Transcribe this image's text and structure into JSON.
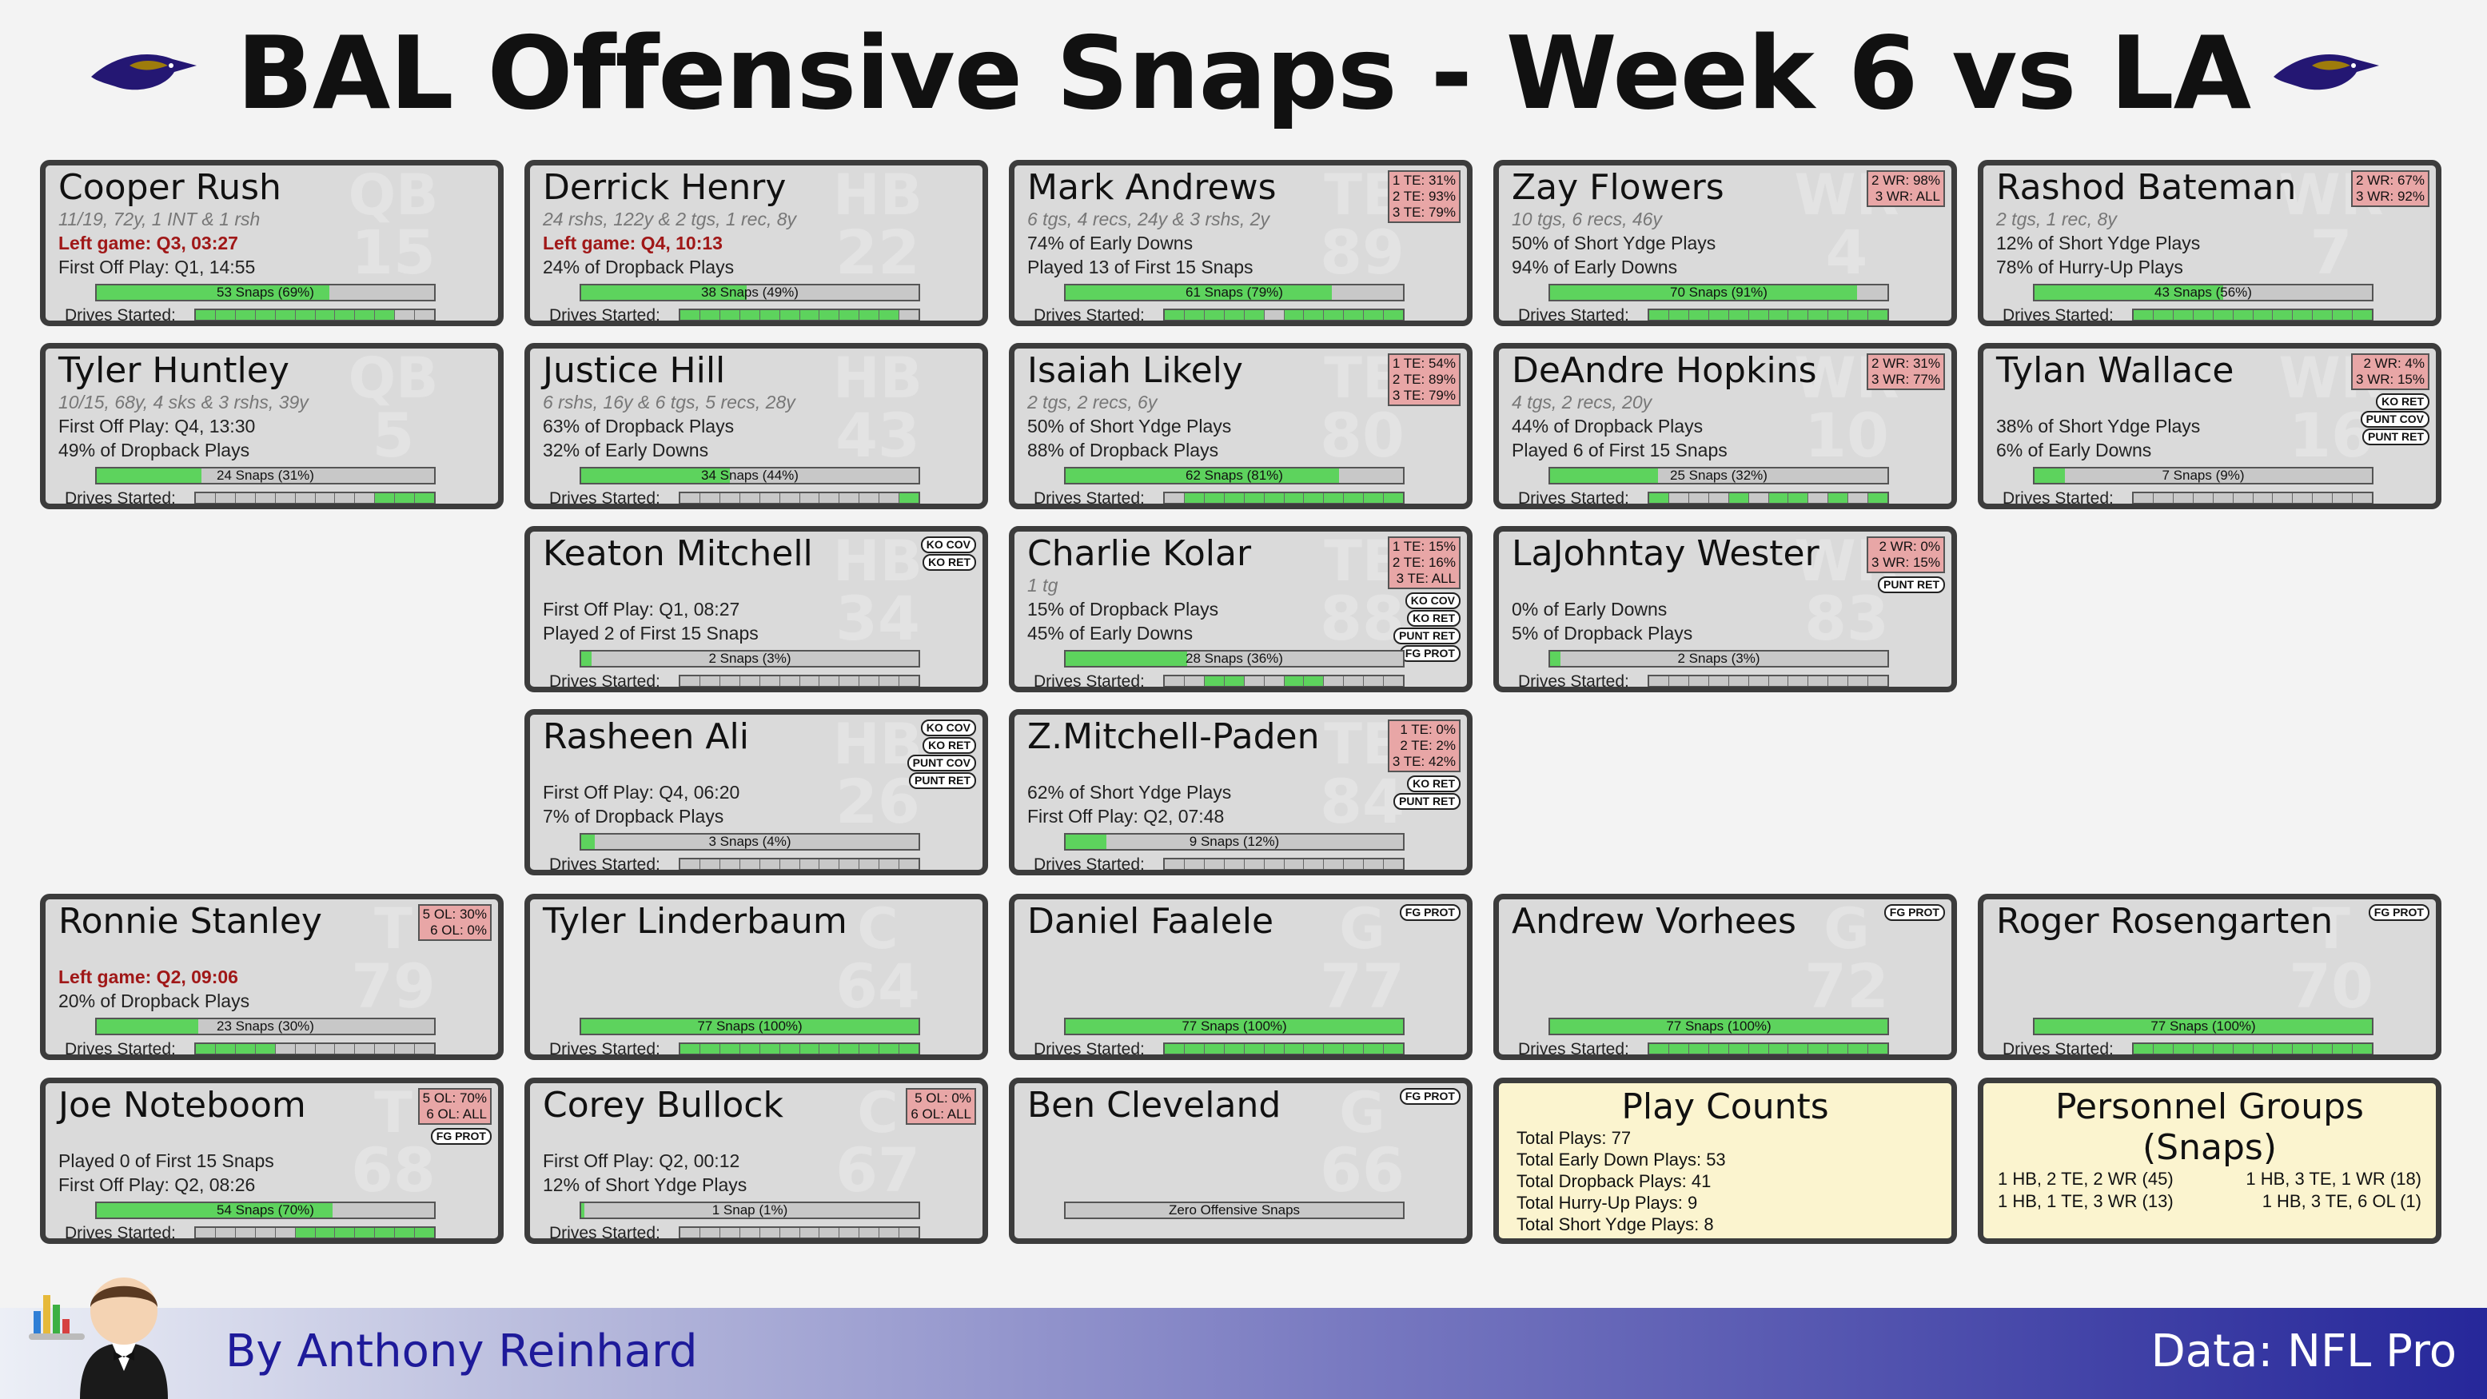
{
  "title": "BAL Offensive Snaps - Week 6 vs LA",
  "footer": {
    "byline": "By Anthony Reinhard",
    "source": "Data: NFL Pro"
  },
  "drives_label": "Drives Started:",
  "cards": [
    {
      "name": "Cooper Rush",
      "pos": "QB",
      "num": "15",
      "lines": [
        {
          "text": "11/19, 72y, 1 INT & 1 rsh",
          "kind": "stat"
        },
        {
          "text": "Left game: Q3, 03:27",
          "kind": "left"
        },
        {
          "text": "First Off Play: Q1, 14:55",
          "kind": "plain"
        }
      ],
      "snaps_label": "53 Snaps (69%)",
      "snap_share": 0.69,
      "drives": [
        1,
        1,
        1,
        1,
        1,
        1,
        1,
        1,
        1,
        1,
        0,
        0
      ]
    },
    {
      "name": "Derrick Henry",
      "pos": "HB",
      "num": "22",
      "lines": [
        {
          "text": "24 rshs, 122y & 2 tgs, 1 rec, 8y",
          "kind": "stat"
        },
        {
          "text": "Left game: Q4, 10:13",
          "kind": "left"
        },
        {
          "text": "24% of Dropback Plays",
          "kind": "plain"
        }
      ],
      "snaps_label": "38 Snaps (49%)",
      "snap_share": 0.49,
      "drives": [
        1,
        1,
        1,
        1,
        1,
        1,
        1,
        1,
        1,
        1,
        1,
        0
      ]
    },
    {
      "name": "Mark Andrews",
      "pos": "TE",
      "num": "89",
      "pct": [
        "1 TE: 31%",
        "2 TE: 93%",
        "3 TE: 79%"
      ],
      "lines": [
        {
          "text": "6 tgs, 4 recs, 24y & 3 rshs, 2y",
          "kind": "stat"
        },
        {
          "text": "74% of Early Downs",
          "kind": "plain"
        },
        {
          "text": "Played 13 of First 15 Snaps",
          "kind": "plain"
        }
      ],
      "snaps_label": "61 Snaps (79%)",
      "snap_share": 0.79,
      "drives": [
        1,
        1,
        1,
        1,
        1,
        0,
        1,
        1,
        1,
        1,
        1,
        1
      ]
    },
    {
      "name": "Zay Flowers",
      "pos": "WR",
      "num": "4",
      "pct": [
        "2 WR: 98%",
        "3 WR: ALL"
      ],
      "lines": [
        {
          "text": "10 tgs, 6 recs, 46y",
          "kind": "stat"
        },
        {
          "text": "50% of Short Ydge Plays",
          "kind": "plain"
        },
        {
          "text": "94% of Early Downs",
          "kind": "plain"
        }
      ],
      "snaps_label": "70 Snaps (91%)",
      "snap_share": 0.91,
      "drives": [
        1,
        1,
        1,
        1,
        1,
        1,
        1,
        1,
        1,
        1,
        1,
        1
      ]
    },
    {
      "name": "Rashod Bateman",
      "pos": "WR",
      "num": "7",
      "pct": [
        "2 WR: 67%",
        "3 WR: 92%"
      ],
      "lines": [
        {
          "text": "2 tgs, 1 rec, 8y",
          "kind": "stat"
        },
        {
          "text": "12% of Short Ydge Plays",
          "kind": "plain"
        },
        {
          "text": "78% of Hurry-Up Plays",
          "kind": "plain"
        }
      ],
      "snaps_label": "43 Snaps (56%)",
      "snap_share": 0.56,
      "drives": [
        1,
        1,
        1,
        1,
        1,
        1,
        1,
        1,
        1,
        1,
        1,
        1
      ]
    },
    {
      "name": "Tyler Huntley",
      "pos": "QB",
      "num": "5",
      "lines": [
        {
          "text": "10/15, 68y, 4 sks & 3 rshs, 39y",
          "kind": "stat"
        },
        {
          "text": "First Off Play: Q4, 13:30",
          "kind": "plain"
        },
        {
          "text": "49% of Dropback Plays",
          "kind": "plain"
        }
      ],
      "snaps_label": "24 Snaps (31%)",
      "snap_share": 0.31,
      "drives": [
        0,
        0,
        0,
        0,
        0,
        0,
        0,
        0,
        0,
        1,
        1,
        1
      ]
    },
    {
      "name": "Justice Hill",
      "pos": "HB",
      "num": "43",
      "lines": [
        {
          "text": "6 rshs, 16y & 6 tgs, 5 recs, 28y",
          "kind": "stat"
        },
        {
          "text": "63% of Dropback Plays",
          "kind": "plain"
        },
        {
          "text": "32% of Early Downs",
          "kind": "plain"
        }
      ],
      "snaps_label": "34 Snaps (44%)",
      "snap_share": 0.44,
      "drives": [
        0,
        0,
        0,
        0,
        0,
        0,
        0,
        0,
        0,
        0,
        0,
        1
      ]
    },
    {
      "name": "Isaiah Likely",
      "pos": "TE",
      "num": "80",
      "pct": [
        "1 TE: 54%",
        "2 TE: 89%",
        "3 TE: 79%"
      ],
      "lines": [
        {
          "text": "2 tgs, 2 recs, 6y",
          "kind": "stat"
        },
        {
          "text": "50% of Short Ydge Plays",
          "kind": "plain"
        },
        {
          "text": "88% of Dropback Plays",
          "kind": "plain"
        }
      ],
      "snaps_label": "62 Snaps (81%)",
      "snap_share": 0.81,
      "drives": [
        0,
        1,
        1,
        1,
        1,
        1,
        1,
        1,
        1,
        1,
        1,
        1
      ]
    },
    {
      "name": "DeAndre Hopkins",
      "pos": "WR",
      "num": "10",
      "pct": [
        "2 WR: 31%",
        "3 WR: 77%"
      ],
      "lines": [
        {
          "text": "4 tgs, 2 recs, 20y",
          "kind": "stat"
        },
        {
          "text": "44% of Dropback Plays",
          "kind": "plain"
        },
        {
          "text": "Played 6 of First 15 Snaps",
          "kind": "plain"
        }
      ],
      "snaps_label": "25 Snaps (32%)",
      "snap_share": 0.32,
      "drives": [
        1,
        0,
        0,
        0,
        1,
        0,
        1,
        1,
        0,
        1,
        0,
        1
      ]
    },
    {
      "name": "Tylan Wallace",
      "pos": "WR",
      "num": "16",
      "pct": [
        "2 WR: 4%",
        "3 WR: 15%"
      ],
      "badges": [
        "KO RET",
        "PUNT COV",
        "PUNT RET"
      ],
      "lines": [
        {
          "text": "",
          "kind": "stat"
        },
        {
          "text": "38% of Short Ydge Plays",
          "kind": "plain"
        },
        {
          "text": "6% of Early Downs",
          "kind": "plain"
        }
      ],
      "snaps_label": "7 Snaps (9%)",
      "snap_share": 0.09,
      "drives": [
        0,
        0,
        0,
        0,
        0,
        0,
        0,
        0,
        0,
        0,
        0,
        0
      ]
    },
    {
      "name": "Keaton Mitchell",
      "pos": "HB",
      "num": "34",
      "badges": [
        "KO COV",
        "KO RET"
      ],
      "lines": [
        {
          "text": "",
          "kind": "stat"
        },
        {
          "text": "First Off Play: Q1, 08:27",
          "kind": "plain"
        },
        {
          "text": "Played 2 of First 15 Snaps",
          "kind": "plain"
        }
      ],
      "snaps_label": "2 Snaps (3%)",
      "snap_share": 0.03,
      "drives": [
        0,
        0,
        0,
        0,
        0,
        0,
        0,
        0,
        0,
        0,
        0,
        0
      ]
    },
    {
      "name": "Charlie Kolar",
      "pos": "TE",
      "num": "88",
      "pct": [
        "1 TE: 15%",
        "2 TE: 16%",
        "3 TE: ALL"
      ],
      "badges": [
        "KO COV",
        "KO RET",
        "PUNT RET",
        "FG PROT"
      ],
      "lines": [
        {
          "text": "1 tg",
          "kind": "stat"
        },
        {
          "text": "15% of Dropback Plays",
          "kind": "plain"
        },
        {
          "text": "45% of Early Downs",
          "kind": "plain"
        }
      ],
      "snaps_label": "28 Snaps (36%)",
      "snap_share": 0.36,
      "drives": [
        0,
        0,
        1,
        1,
        0,
        0,
        1,
        1,
        0,
        0,
        0,
        0
      ]
    },
    {
      "name": "LaJohntay Wester",
      "pos": "WR",
      "num": "83",
      "pct": [
        "2 WR: 0%",
        "3 WR: 15%"
      ],
      "badges": [
        "PUNT RET"
      ],
      "lines": [
        {
          "text": "",
          "kind": "stat"
        },
        {
          "text": "0% of Early Downs",
          "kind": "plain"
        },
        {
          "text": "5% of Dropback Plays",
          "kind": "plain"
        }
      ],
      "snaps_label": "2 Snaps (3%)",
      "snap_share": 0.03,
      "drives": [
        0,
        0,
        0,
        0,
        0,
        0,
        0,
        0,
        0,
        0,
        0,
        0
      ]
    },
    {
      "name": "Rasheen Ali",
      "pos": "HB",
      "num": "26",
      "badges": [
        "KO COV",
        "KO RET",
        "PUNT COV",
        "PUNT RET"
      ],
      "lines": [
        {
          "text": "",
          "kind": "stat"
        },
        {
          "text": "First Off Play: Q4, 06:20",
          "kind": "plain"
        },
        {
          "text": "7% of Dropback Plays",
          "kind": "plain"
        }
      ],
      "snaps_label": "3 Snaps (4%)",
      "snap_share": 0.04,
      "drives": [
        0,
        0,
        0,
        0,
        0,
        0,
        0,
        0,
        0,
        0,
        0,
        0
      ]
    },
    {
      "name": "Z.Mitchell-Paden",
      "pos": "TE",
      "num": "84",
      "pct": [
        "1 TE: 0%",
        "2 TE: 2%",
        "3 TE: 42%"
      ],
      "badges": [
        "KO RET",
        "PUNT RET"
      ],
      "lines": [
        {
          "text": "",
          "kind": "stat"
        },
        {
          "text": "62% of Short Ydge Plays",
          "kind": "plain"
        },
        {
          "text": "First Off Play: Q2, 07:48",
          "kind": "plain"
        }
      ],
      "snaps_label": "9 Snaps (12%)",
      "snap_share": 0.12,
      "drives": [
        0,
        0,
        0,
        0,
        0,
        0,
        0,
        0,
        0,
        0,
        0,
        0
      ]
    },
    {
      "name": "Ronnie Stanley",
      "pos": "T",
      "num": "79",
      "pct": [
        "5 OL: 30%",
        "6 OL: 0%"
      ],
      "lines": [
        {
          "text": "",
          "kind": "stat"
        },
        {
          "text": "Left game: Q2, 09:06",
          "kind": "left"
        },
        {
          "text": "20% of Dropback Plays",
          "kind": "plain"
        }
      ],
      "snaps_label": "23 Snaps (30%)",
      "snap_share": 0.3,
      "drives": [
        1,
        1,
        1,
        1,
        0,
        0,
        0,
        0,
        0,
        0,
        0,
        0
      ]
    },
    {
      "name": "Tyler Linderbaum",
      "pos": "C",
      "num": "64",
      "lines": [
        {
          "text": "",
          "kind": "stat"
        },
        {
          "text": "",
          "kind": "plain"
        },
        {
          "text": "",
          "kind": "plain"
        }
      ],
      "snaps_label": "77 Snaps (100%)",
      "snap_share": 1.0,
      "drives": [
        1,
        1,
        1,
        1,
        1,
        1,
        1,
        1,
        1,
        1,
        1,
        1
      ]
    },
    {
      "name": "Daniel Faalele",
      "pos": "G",
      "num": "77",
      "badges": [
        "FG PROT"
      ],
      "lines": [
        {
          "text": "",
          "kind": "stat"
        },
        {
          "text": "",
          "kind": "plain"
        },
        {
          "text": "",
          "kind": "plain"
        }
      ],
      "snaps_label": "77 Snaps (100%)",
      "snap_share": 1.0,
      "drives": [
        1,
        1,
        1,
        1,
        1,
        1,
        1,
        1,
        1,
        1,
        1,
        1
      ]
    },
    {
      "name": "Andrew Vorhees",
      "pos": "G",
      "num": "72",
      "badges": [
        "FG PROT"
      ],
      "lines": [
        {
          "text": "",
          "kind": "stat"
        },
        {
          "text": "",
          "kind": "plain"
        },
        {
          "text": "",
          "kind": "plain"
        }
      ],
      "snaps_label": "77 Snaps (100%)",
      "snap_share": 1.0,
      "drives": [
        1,
        1,
        1,
        1,
        1,
        1,
        1,
        1,
        1,
        1,
        1,
        1
      ]
    },
    {
      "name": "Roger Rosengarten",
      "pos": "T",
      "num": "70",
      "badges": [
        "FG PROT"
      ],
      "lines": [
        {
          "text": "",
          "kind": "stat"
        },
        {
          "text": "",
          "kind": "plain"
        },
        {
          "text": "",
          "kind": "plain"
        }
      ],
      "snaps_label": "77 Snaps (100%)",
      "snap_share": 1.0,
      "drives": [
        1,
        1,
        1,
        1,
        1,
        1,
        1,
        1,
        1,
        1,
        1,
        1
      ]
    },
    {
      "name": "Joe Noteboom",
      "pos": "T",
      "num": "68",
      "pct": [
        "5 OL: 70%",
        "6 OL: ALL"
      ],
      "badges": [
        "FG PROT"
      ],
      "lines": [
        {
          "text": "",
          "kind": "stat"
        },
        {
          "text": "Played 0 of First 15 Snaps",
          "kind": "plain"
        },
        {
          "text": "First Off Play: Q2, 08:26",
          "kind": "plain"
        }
      ],
      "snaps_label": "54 Snaps (70%)",
      "snap_share": 0.7,
      "drives": [
        0,
        0,
        0,
        0,
        0,
        1,
        1,
        1,
        1,
        1,
        1,
        1
      ]
    },
    {
      "name": "Corey Bullock",
      "pos": "C",
      "num": "67",
      "pct": [
        "5 OL: 0%",
        "6 OL: ALL"
      ],
      "lines": [
        {
          "text": "",
          "kind": "stat"
        },
        {
          "text": "First Off Play: Q2, 00:12",
          "kind": "plain"
        },
        {
          "text": "12% of Short Ydge Plays",
          "kind": "plain"
        }
      ],
      "snaps_label": "1 Snap (1%)",
      "snap_share": 0.01,
      "drives": [
        0,
        0,
        0,
        0,
        0,
        0,
        0,
        0,
        0,
        0,
        0,
        0
      ]
    },
    {
      "name": "Ben Cleveland",
      "pos": "G",
      "num": "66",
      "badges": [
        "FG PROT"
      ],
      "lines": [
        {
          "text": "",
          "kind": "stat"
        },
        {
          "text": "",
          "kind": "plain"
        },
        {
          "text": "",
          "kind": "plain"
        }
      ],
      "snaps_label": "Zero Offensive Snaps",
      "snap_share": 0.0,
      "no_drives": true,
      "drives": []
    }
  ],
  "play_counts": {
    "title": "Play Counts",
    "items": [
      "Total Plays: 77",
      "Total Early Down Plays: 53",
      "Total Dropback Plays: 41",
      "Total Hurry-Up Plays: 9",
      "Total Short Ydge Plays: 8"
    ]
  },
  "personnel": {
    "title": "Personnel Groups (Snaps)",
    "items": [
      "1 HB, 2 TE, 2 WR (45)",
      "1 HB, 3 TE, 1 WR (18)",
      "1 HB, 1 TE, 3 WR (13)",
      "1 HB, 3 TE, 6 OL (1)"
    ]
  }
}
